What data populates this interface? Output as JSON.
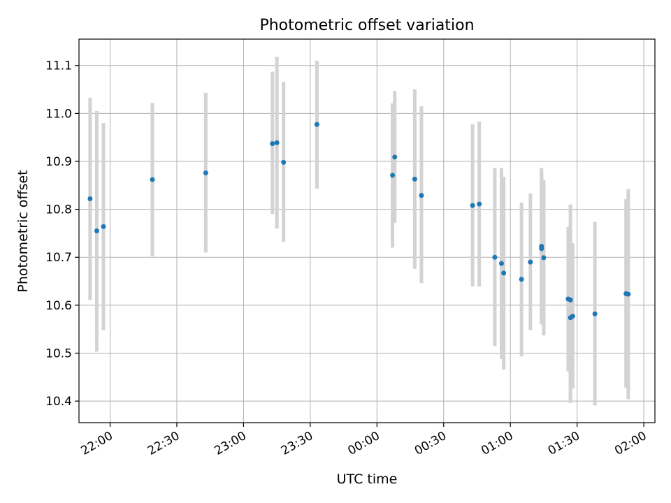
{
  "chart_data": {
    "type": "scatter",
    "title": "Photometric offset variation",
    "xlabel": "UTC time",
    "ylabel": "Photometric offset",
    "x_tick_labels": [
      "22:00",
      "22:30",
      "23:00",
      "23:30",
      "00:00",
      "00:30",
      "01:00",
      "01:30",
      "02:00"
    ],
    "y_tick_labels": [
      "10.4",
      "10.5",
      "10.6",
      "10.7",
      "10.8",
      "10.9",
      "11.0",
      "11.1"
    ],
    "grid": true,
    "point_color": "#1f77b4",
    "errorbar_color": "#d3d3d3",
    "points": [
      {
        "x": "21:51",
        "y": 10.822,
        "lo": 10.611,
        "hi": 11.033
      },
      {
        "x": "21:54",
        "y": 10.755,
        "lo": 10.503,
        "hi": 11.005
      },
      {
        "x": "21:57",
        "y": 10.764,
        "lo": 10.548,
        "hi": 10.98
      },
      {
        "x": "22:19",
        "y": 10.862,
        "lo": 10.702,
        "hi": 11.022
      },
      {
        "x": "22:43",
        "y": 10.876,
        "lo": 10.71,
        "hi": 11.043
      },
      {
        "x": "23:13",
        "y": 10.937,
        "lo": 10.79,
        "hi": 11.087
      },
      {
        "x": "23:15",
        "y": 10.939,
        "lo": 10.76,
        "hi": 11.118
      },
      {
        "x": "23:18",
        "y": 10.898,
        "lo": 10.732,
        "hi": 11.066
      },
      {
        "x": "23:33",
        "y": 10.977,
        "lo": 10.843,
        "hi": 11.11
      },
      {
        "x": "00:07",
        "y": 10.871,
        "lo": 10.72,
        "hi": 11.021
      },
      {
        "x": "00:08",
        "y": 10.909,
        "lo": 10.772,
        "hi": 11.047
      },
      {
        "x": "00:17",
        "y": 10.863,
        "lo": 10.676,
        "hi": 11.05
      },
      {
        "x": "00:20",
        "y": 10.829,
        "lo": 10.646,
        "hi": 11.015
      },
      {
        "x": "00:43",
        "y": 10.808,
        "lo": 10.639,
        "hi": 10.977
      },
      {
        "x": "00:46",
        "y": 10.811,
        "lo": 10.639,
        "hi": 10.983
      },
      {
        "x": "00:53",
        "y": 10.7,
        "lo": 10.515,
        "hi": 10.886
      },
      {
        "x": "00:56",
        "y": 10.687,
        "lo": 10.488,
        "hi": 10.886
      },
      {
        "x": "00:57",
        "y": 10.667,
        "lo": 10.466,
        "hi": 10.868
      },
      {
        "x": "01:05",
        "y": 10.654,
        "lo": 10.493,
        "hi": 10.814
      },
      {
        "x": "01:09",
        "y": 10.69,
        "lo": 10.548,
        "hi": 10.833
      },
      {
        "x": "01:14",
        "y": 10.723,
        "lo": 10.56,
        "hi": 10.886
      },
      {
        "x": "01:14",
        "y": 10.718,
        "lo": 10.575,
        "hi": 10.876
      },
      {
        "x": "01:15",
        "y": 10.699,
        "lo": 10.537,
        "hi": 10.861
      },
      {
        "x": "01:26",
        "y": 10.613,
        "lo": 10.462,
        "hi": 10.763
      },
      {
        "x": "01:27",
        "y": 10.574,
        "lo": 10.396,
        "hi": 10.73
      },
      {
        "x": "01:27",
        "y": 10.611,
        "lo": 10.412,
        "hi": 10.81
      },
      {
        "x": "01:28",
        "y": 10.577,
        "lo": 10.426,
        "hi": 10.729
      },
      {
        "x": "01:38",
        "y": 10.582,
        "lo": 10.391,
        "hi": 10.774
      },
      {
        "x": "01:52",
        "y": 10.624,
        "lo": 10.428,
        "hi": 10.821
      },
      {
        "x": "01:53",
        "y": 10.623,
        "lo": 10.404,
        "hi": 10.842
      }
    ],
    "xlim": [
      "21:46",
      "02:05"
    ],
    "ylim": [
      10.355,
      11.155
    ]
  }
}
